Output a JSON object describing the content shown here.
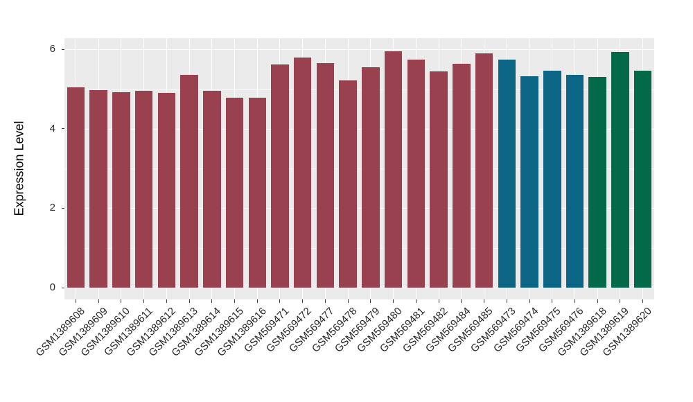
{
  "chart_data": {
    "type": "bar",
    "title": "",
    "xlabel": "",
    "ylabel": "Expression Level",
    "ylim": [
      0,
      6.3
    ],
    "yticks": [
      0,
      2,
      4,
      6
    ],
    "yminor": [
      1,
      3,
      5
    ],
    "grid": true,
    "legend_position": "none",
    "panel_background": "#EBEBEB",
    "gridline_color": "#FFFFFF",
    "categories": [
      "GSM1389608",
      "GSM1389609",
      "GSM1389610",
      "GSM1389611",
      "GSM1389612",
      "GSM1389613",
      "GSM1389614",
      "GSM1389615",
      "GSM1389616",
      "GSM569471",
      "GSM569472",
      "GSM569477",
      "GSM569478",
      "GSM569479",
      "GSM569480",
      "GSM569481",
      "GSM569482",
      "GSM569484",
      "GSM569485",
      "GSM569473",
      "GSM569474",
      "GSM569475",
      "GSM569476",
      "GSM1389618",
      "GSM1389619",
      "GSM1389620"
    ],
    "values": [
      5.04,
      4.98,
      4.93,
      4.96,
      4.91,
      5.36,
      4.96,
      4.79,
      4.78,
      5.62,
      5.79,
      5.66,
      5.22,
      5.55,
      5.95,
      5.75,
      5.44,
      5.64,
      5.9,
      5.74,
      5.33,
      5.46,
      5.35,
      5.3,
      5.93,
      5.46
    ],
    "colors": [
      "#9A4150",
      "#9A4150",
      "#9A4150",
      "#9A4150",
      "#9A4150",
      "#9A4150",
      "#9A4150",
      "#9A4150",
      "#9A4150",
      "#9A4150",
      "#9A4150",
      "#9A4150",
      "#9A4150",
      "#9A4150",
      "#9A4150",
      "#9A4150",
      "#9A4150",
      "#9A4150",
      "#9A4150",
      "#0C6585",
      "#0C6585",
      "#0C6585",
      "#0C6585",
      "#026A48",
      "#026A48",
      "#026A48"
    ],
    "group_palette": {
      "group1_maroon": "#9A4150",
      "group2_teal": "#0C6585",
      "group3_green": "#026A48"
    }
  }
}
